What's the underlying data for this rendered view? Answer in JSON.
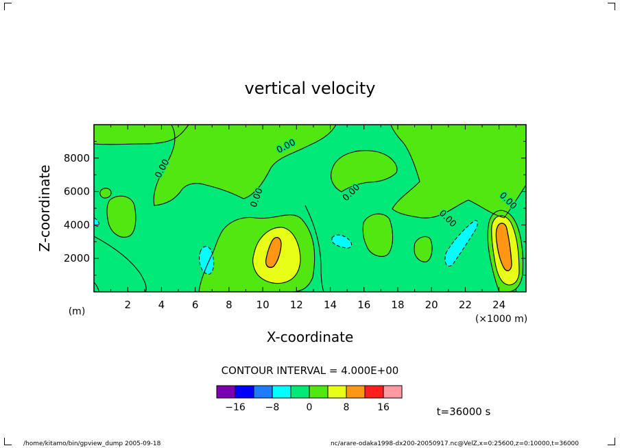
{
  "chart_data": {
    "type": "contour",
    "title": "vertical velocity",
    "xlabel": "X-coordinate",
    "ylabel": "Z-coordinate",
    "x_unit_label": "(×1000 m)",
    "y_unit_label": "(m)",
    "xlim": [
      0,
      25.6
    ],
    "ylim": [
      0,
      10000
    ],
    "x_ticks": [
      2,
      4,
      6,
      8,
      10,
      12,
      14,
      16,
      18,
      20,
      22,
      24
    ],
    "y_ticks": [
      2000,
      4000,
      6000,
      8000
    ],
    "contour_label": "0.00",
    "contour_interval_text": "CONTOUR INTERVAL = 4.000E+00",
    "time_text": "t=36000 s",
    "colorbar": {
      "colors": [
        "#7c00b0",
        "#0000ff",
        "#1e7cff",
        "#00ffff",
        "#00e878",
        "#50e810",
        "#e6ff14",
        "#ff9614",
        "#ff1e1e",
        "#ff9aa0"
      ],
      "tick_labels": [
        "−16",
        "−8",
        "0",
        "8",
        "16"
      ],
      "tick_values": [
        -16,
        -8,
        0,
        8,
        16
      ]
    },
    "features": [
      {
        "type": "updraft",
        "x": 10.9,
        "z": 2700,
        "peak": 12
      },
      {
        "type": "updraft",
        "x": 24.3,
        "z": 3000,
        "peak": 14
      },
      {
        "type": "downdraft",
        "x": 6.7,
        "z": 1900,
        "peak": -3
      },
      {
        "type": "downdraft",
        "x": 15.0,
        "z": 3000,
        "peak": -2
      },
      {
        "type": "downdraft",
        "x": 21.9,
        "z": 2800,
        "peak": -4
      }
    ]
  },
  "footer": {
    "left": "/home/kitamo/bin/gpview_dump   2005-09-18",
    "right": "nc/arare-odaka1998-dx200-20050917.nc@VelZ,x=0:25600,z=0:10000,t=36000"
  }
}
